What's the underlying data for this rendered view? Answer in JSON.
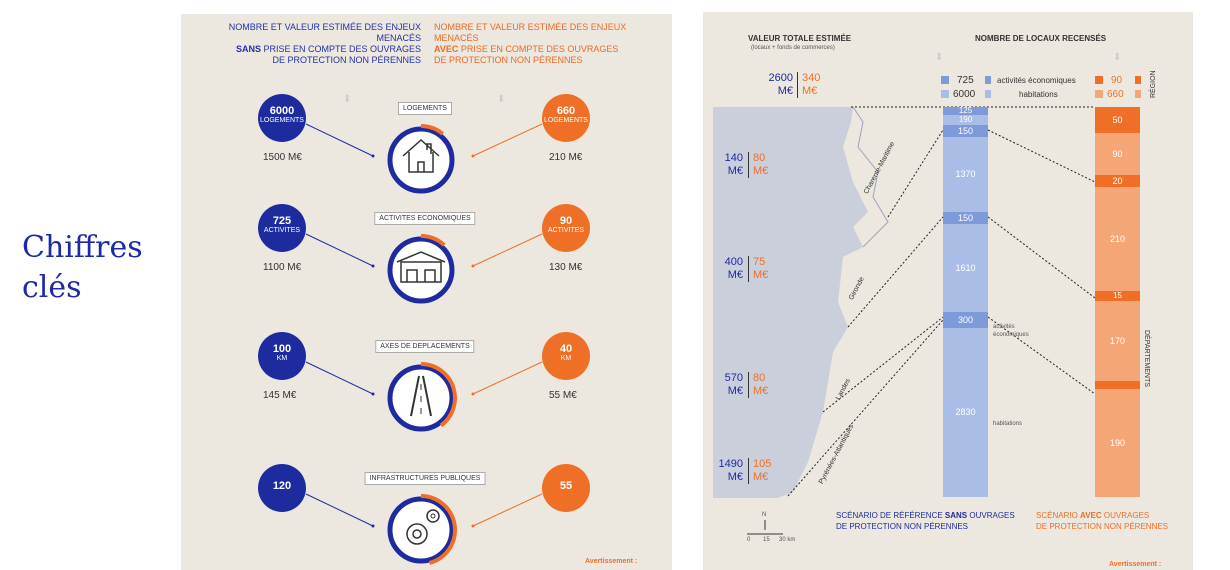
{
  "title": "Chiffres\nclés",
  "left": {
    "header_sans_line1": "NOMBRE ET VALEUR ESTIMÉE DES ENJEUX MENACÉS",
    "header_sans_bold": "SANS",
    "header_sans_line2": " PRISE EN COMPTE DES OUVRAGES",
    "header_sans_line3": "DE PROTECTION NON PÉRENNES",
    "header_avec_line1": "NOMBRE ET VALEUR ESTIMÉE DES ENJEUX MENACÉS",
    "header_avec_bold": "AVEC",
    "header_avec_line2": " PRISE EN COMPTE DES OUVRAGES",
    "header_avec_line3": "DE PROTECTION NON PÉRENNES",
    "rows": [
      {
        "category": "LOGEMENTS",
        "icon": "house-icon",
        "blue_num": "6000",
        "blue_unit": "LOGEMENTS",
        "blue_value": "1500 M€",
        "orange_num": "660",
        "orange_unit": "LOGEMENTS",
        "orange_value": "210 M€",
        "orange_share": 0.11
      },
      {
        "category": "ACTIVITES ECONOMIQUES",
        "icon": "shop-icon",
        "blue_num": "725",
        "blue_unit": "ACTIVITES",
        "blue_value": "1100 M€",
        "orange_num": "90",
        "orange_unit": "ACTIVITES",
        "orange_value": "130 M€",
        "orange_share": 0.12
      },
      {
        "category": "AXES DE DEPLACEMENTS",
        "icon": "road-icon",
        "blue_num": "100",
        "blue_unit": "KM",
        "blue_value": "145 M€",
        "orange_num": "40",
        "orange_unit": "KM",
        "orange_value": "55 M€",
        "orange_share": 0.4
      },
      {
        "category": "INFRASTRUCTURES PUBLIQUES",
        "icon": "gears-icon",
        "blue_num": "120",
        "blue_unit": "",
        "blue_value": "",
        "orange_num": "55",
        "orange_unit": "",
        "orange_value": "",
        "orange_share": 0.46
      }
    ],
    "warning": "Avertissement :"
  },
  "right": {
    "valeur_title": "VALEUR TOTALE ESTIMÉE",
    "valeur_sub": "(locaux + fonds de commerces)",
    "nombre_title": "NOMBRE DE LOCAUX RECENSÉS",
    "total_blue": "2600",
    "total_orange": "340",
    "unit": "M€",
    "legend_blue_act": "725",
    "legend_blue_hab": "6000",
    "legend_act_label": "activités économiques",
    "legend_hab_label": "habitations",
    "legend_orange_act": "90",
    "legend_orange_hab": "660",
    "region_label": "RÉGION",
    "departements_label": "DÉPARTEMENTS",
    "departments": [
      {
        "name": "Charente-Maritime",
        "blue": "140",
        "orange": "80"
      },
      {
        "name": "Gironde",
        "blue": "400",
        "orange": "75"
      },
      {
        "name": "Landes",
        "blue": "570",
        "orange": "80"
      },
      {
        "name": "Pyrénées-Atlantiques",
        "blue": "1490",
        "orange": "105"
      }
    ],
    "blue_bar": [
      {
        "value": "125",
        "type": "act"
      },
      {
        "value": "190",
        "type": "hab"
      },
      {
        "value": "150",
        "type": "act"
      },
      {
        "value": "1370",
        "type": "hab"
      },
      {
        "value": "150",
        "type": "act"
      },
      {
        "value": "1610",
        "type": "hab"
      },
      {
        "value": "300",
        "type": "act"
      },
      {
        "value": "2830",
        "type": "hab"
      }
    ],
    "orange_bar": [
      {
        "value": "50",
        "type": "act"
      },
      {
        "value": "90",
        "type": "hab"
      },
      {
        "value": "20",
        "type": "act"
      },
      {
        "value": "210",
        "type": "hab"
      },
      {
        "value": "15",
        "type": "act"
      },
      {
        "value": "170",
        "type": "hab"
      },
      {
        "value": "",
        "type": "act"
      },
      {
        "value": "190",
        "type": "hab"
      }
    ],
    "side_act": "activités\néconomiques",
    "side_hab": "habitations",
    "scen_sans_1": "SCÉNARIO DE RÉFÉRENCE ",
    "scen_sans_bold": "SANS",
    "scen_sans_2": " OUVRAGES",
    "scen_sans_3": "DE PROTECTION NON PÉRENNES",
    "scen_avec_1": "SCÉNARIO ",
    "scen_avec_bold": "AVEC",
    "scen_avec_2": " OUVRAGES",
    "scen_avec_3": "DE PROTECTION NON PÉRENNES",
    "scale_n": "N",
    "scale_labels": [
      "0",
      "15",
      "30 km"
    ],
    "warning": "Avertissement :"
  },
  "colors": {
    "blue": "#1e2b9f",
    "orange": "#ef6f27",
    "light_blue": "#a9bde6",
    "mid_blue": "#7f9ad9",
    "light_orange": "#f5a676"
  }
}
